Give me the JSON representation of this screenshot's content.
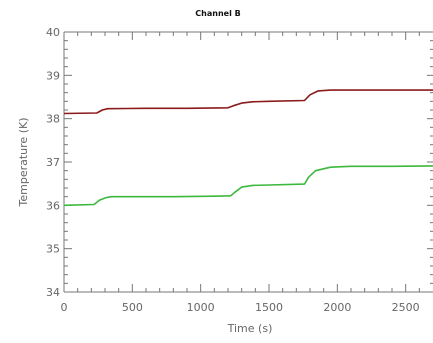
{
  "chart_data": {
    "type": "line",
    "title": "Channel B",
    "xlabel": "Time (s)",
    "ylabel": "Temperature (K)",
    "xlim": [
      0,
      2700
    ],
    "ylim": [
      34,
      40
    ],
    "x_ticks": [
      0,
      500,
      1000,
      1500,
      2000,
      2500
    ],
    "y_ticks": [
      34,
      35,
      36,
      37,
      38,
      39,
      40
    ],
    "grid": false,
    "legend": "none",
    "series": [
      {
        "color": "#8b1a1a",
        "x": [
          0,
          240,
          280,
          320,
          600,
          900,
          1200,
          1240,
          1300,
          1380,
          1500,
          1760,
          1800,
          1860,
          1950,
          2100,
          2400,
          2700
        ],
        "y": [
          38.12,
          38.13,
          38.2,
          38.23,
          38.24,
          38.24,
          38.25,
          38.3,
          38.36,
          38.39,
          38.4,
          38.42,
          38.55,
          38.64,
          38.66,
          38.66,
          38.66,
          38.66
        ]
      },
      {
        "color": "#3cb83c",
        "x": [
          0,
          220,
          260,
          310,
          350,
          500,
          800,
          1100,
          1220,
          1250,
          1300,
          1380,
          1500,
          1760,
          1790,
          1840,
          1950,
          2100,
          2400,
          2700
        ],
        "y": [
          36.0,
          36.02,
          36.12,
          36.18,
          36.2,
          36.2,
          36.2,
          36.21,
          36.22,
          36.3,
          36.42,
          36.46,
          36.47,
          36.49,
          36.65,
          36.8,
          36.88,
          36.9,
          36.9,
          36.91
        ]
      }
    ]
  }
}
